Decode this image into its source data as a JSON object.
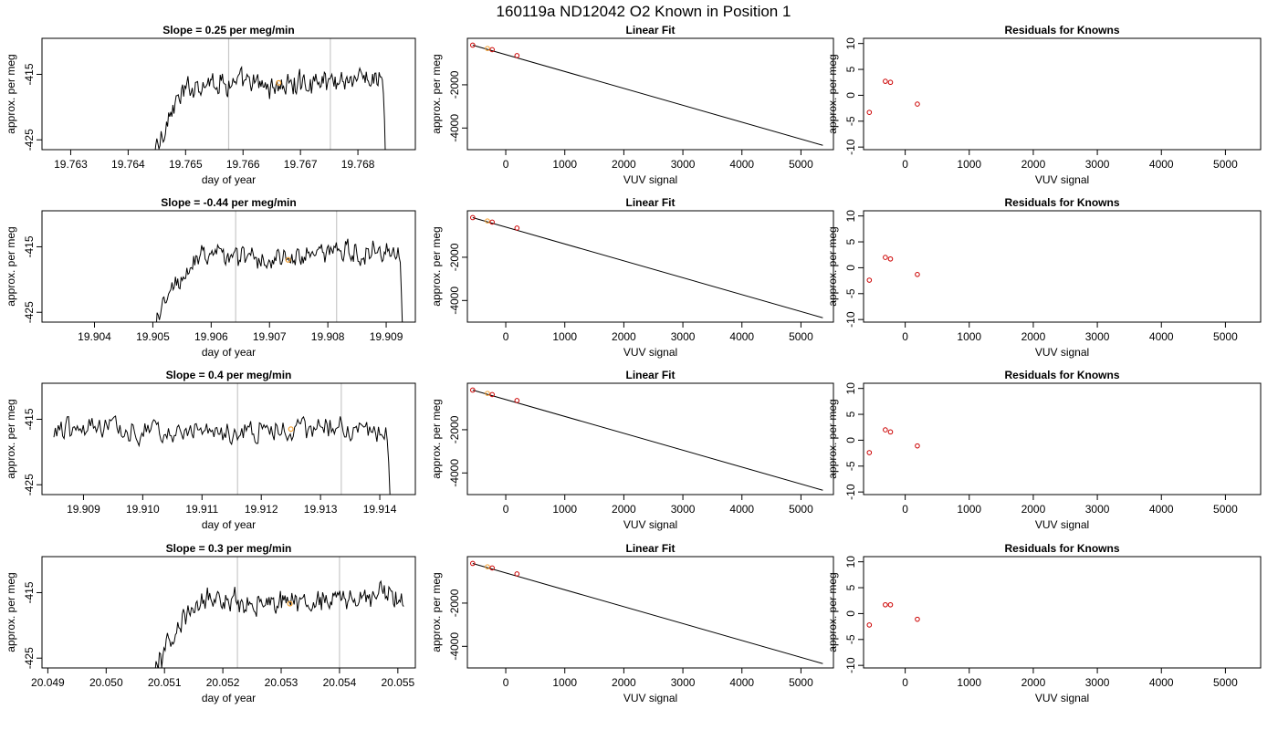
{
  "figure": {
    "title": "160119a     ND12042   O2 Known in Position  1"
  },
  "colors": {
    "series": "#000000",
    "marker_time": "#f4a030",
    "marker_fit_red": "#cc0000",
    "marker_fit_orange": "#f4a030",
    "marker_resid": "#cc0000",
    "vline": "#c8c8c8"
  },
  "chart_data": [
    {
      "type": "line",
      "row": 1,
      "title": "Slope =  0.25  per meg/min",
      "xlabel": "day of year",
      "ylabel": "approx. per meg",
      "xlim": [
        19.7625,
        19.769
      ],
      "ylim": [
        -426.5,
        -409.5
      ],
      "xticks": [
        "19.763",
        "19.764",
        "19.765",
        "19.766",
        "19.767",
        "19.768"
      ],
      "yticks": [
        "-415",
        "-425"
      ],
      "x_start": 19.7642,
      "x_end": 19.7685,
      "vlines": [
        19.76575,
        19.76752
      ],
      "highlight": {
        "x": 19.76662,
        "y": -416.3
      }
    },
    {
      "type": "scatter",
      "row": 1,
      "title": "Linear Fit",
      "xlabel": "VUV signal",
      "ylabel": "approx. per meg",
      "xlim": [
        -650,
        5550
      ],
      "ylim": [
        -5000,
        150
      ],
      "xticks": [
        "0",
        "1000",
        "2000",
        "3000",
        "4000",
        "5000"
      ],
      "yticks": [
        "-2000",
        "-4000"
      ],
      "points": [
        [
          -560,
          -165
        ],
        [
          -310,
          -320
        ],
        [
          -230,
          -375
        ],
        [
          190,
          -650
        ]
      ],
      "fit": [
        [
          -560,
          -165
        ],
        [
          5370,
          -4800
        ]
      ]
    },
    {
      "type": "scatter",
      "row": 1,
      "title": "Residuals for Knowns",
      "xlabel": "VUV signal",
      "ylabel": "approx. per meg",
      "xlim": [
        -650,
        5550
      ],
      "ylim": [
        -10.5,
        11
      ],
      "xticks": [
        "0",
        "1000",
        "2000",
        "3000",
        "4000",
        "5000"
      ],
      "yticks": [
        "10",
        "5",
        "0",
        "-5",
        "-10"
      ],
      "points": [
        [
          -560,
          -3.3
        ],
        [
          -310,
          2.7
        ],
        [
          -230,
          2.5
        ],
        [
          190,
          -1.7
        ]
      ]
    },
    {
      "type": "line",
      "row": 2,
      "title": "Slope =  -0.44  per meg/min",
      "xlabel": "day of year",
      "ylabel": "approx. per meg",
      "xlim": [
        19.9031,
        19.9095
      ],
      "ylim": [
        -426.5,
        -409.5
      ],
      "xticks": [
        "19.904",
        "19.905",
        "19.906",
        "19.907",
        "19.908",
        "19.909"
      ],
      "yticks": [
        "-415",
        "-425"
      ],
      "x_start": 19.9048,
      "x_end": 19.9093,
      "vlines": [
        19.90642,
        19.90815
      ],
      "highlight": {
        "x": 19.90732,
        "y": -417.0
      }
    },
    {
      "type": "scatter",
      "row": 2,
      "title": "Linear Fit",
      "xlabel": "VUV signal",
      "ylabel": "approx. per meg",
      "xlim": [
        -650,
        5550
      ],
      "ylim": [
        -5000,
        150
      ],
      "xticks": [
        "0",
        "1000",
        "2000",
        "3000",
        "4000",
        "5000"
      ],
      "yticks": [
        "-2000",
        "-4000"
      ],
      "points": [
        [
          -560,
          -165
        ],
        [
          -310,
          -320
        ],
        [
          -230,
          -375
        ],
        [
          190,
          -650
        ]
      ],
      "fit": [
        [
          -560,
          -165
        ],
        [
          5370,
          -4800
        ]
      ]
    },
    {
      "type": "scatter",
      "row": 2,
      "title": "Residuals for Knowns",
      "xlabel": "VUV signal",
      "ylabel": "approx. per meg",
      "xlim": [
        -650,
        5550
      ],
      "ylim": [
        -10.5,
        11
      ],
      "xticks": [
        "0",
        "1000",
        "2000",
        "3000",
        "4000",
        "5000"
      ],
      "yticks": [
        "10",
        "5",
        "0",
        "-5",
        "-10"
      ],
      "points": [
        [
          -560,
          -2.4
        ],
        [
          -310,
          2.0
        ],
        [
          -230,
          1.7
        ],
        [
          190,
          -1.3
        ]
      ]
    },
    {
      "type": "line",
      "row": 3,
      "title": "Slope =  0.4  per meg/min",
      "xlabel": "day of year",
      "ylabel": "approx. per meg",
      "xlim": [
        19.9083,
        19.9146
      ],
      "ylim": [
        -426.5,
        -409.5
      ],
      "xticks": [
        "19.909",
        "19.910",
        "19.911",
        "19.912",
        "19.913",
        "19.914"
      ],
      "yticks": [
        "-415",
        "-425"
      ],
      "x_start": 19.9085,
      "x_end": 19.9142,
      "vlines": [
        19.9116,
        19.91335
      ],
      "highlight": {
        "x": 19.9125,
        "y": -416.5
      }
    },
    {
      "type": "scatter",
      "row": 3,
      "title": "Linear Fit",
      "xlabel": "VUV signal",
      "ylabel": "approx. per meg",
      "xlim": [
        -650,
        5550
      ],
      "ylim": [
        -5000,
        150
      ],
      "xticks": [
        "0",
        "1000",
        "2000",
        "3000",
        "4000",
        "5000"
      ],
      "yticks": [
        "-2000",
        "-4000"
      ],
      "points": [
        [
          -560,
          -165
        ],
        [
          -310,
          -320
        ],
        [
          -230,
          -375
        ],
        [
          190,
          -650
        ]
      ],
      "fit": [
        [
          -560,
          -165
        ],
        [
          5370,
          -4800
        ]
      ]
    },
    {
      "type": "scatter",
      "row": 3,
      "title": "Residuals for Knowns",
      "xlabel": "VUV signal",
      "ylabel": "approx. per meg",
      "xlim": [
        -650,
        5550
      ],
      "ylim": [
        -10.5,
        11
      ],
      "xticks": [
        "0",
        "1000",
        "2000",
        "3000",
        "4000",
        "5000"
      ],
      "yticks": [
        "10",
        "5",
        "0",
        "-5",
        "-10"
      ],
      "points": [
        [
          -560,
          -2.4
        ],
        [
          -310,
          2.0
        ],
        [
          -230,
          1.6
        ],
        [
          190,
          -1.1
        ]
      ]
    },
    {
      "type": "line",
      "row": 4,
      "title": "Slope =  0.3  per meg/min",
      "xlabel": "day of year",
      "ylabel": "approx. per meg",
      "xlim": [
        20.0489,
        20.0553
      ],
      "ylim": [
        -426.5,
        -409.5
      ],
      "xticks": [
        "20.049",
        "20.050",
        "20.051",
        "20.052",
        "20.053",
        "20.054",
        "20.055"
      ],
      "yticks": [
        "-415",
        "-425"
      ],
      "x_start": 20.0506,
      "x_end": 20.0551,
      "vlines": [
        20.05225,
        20.054
      ],
      "highlight": {
        "x": 20.05315,
        "y": -416.7
      }
    },
    {
      "type": "scatter",
      "row": 4,
      "title": "Linear Fit",
      "xlabel": "VUV signal",
      "ylabel": "approx. per meg",
      "xlim": [
        -650,
        5550
      ],
      "ylim": [
        -5000,
        150
      ],
      "xticks": [
        "0",
        "1000",
        "2000",
        "3000",
        "4000",
        "5000"
      ],
      "yticks": [
        "-2000",
        "-4000"
      ],
      "points": [
        [
          -560,
          -165
        ],
        [
          -310,
          -320
        ],
        [
          -230,
          -375
        ],
        [
          190,
          -650
        ]
      ],
      "fit": [
        [
          -560,
          -165
        ],
        [
          5370,
          -4800
        ]
      ]
    },
    {
      "type": "scatter",
      "row": 4,
      "title": "Residuals for Knowns",
      "xlabel": "VUV signal",
      "ylabel": "approx. per meg",
      "xlim": [
        -650,
        5550
      ],
      "ylim": [
        -10.5,
        11
      ],
      "xticks": [
        "0",
        "1000",
        "2000",
        "3000",
        "4000",
        "5000"
      ],
      "yticks": [
        "10",
        "5",
        "0",
        "-5",
        "-10"
      ],
      "points": [
        [
          -560,
          -2.2
        ],
        [
          -310,
          1.7
        ],
        [
          -230,
          1.7
        ],
        [
          190,
          -1.1
        ]
      ]
    }
  ]
}
